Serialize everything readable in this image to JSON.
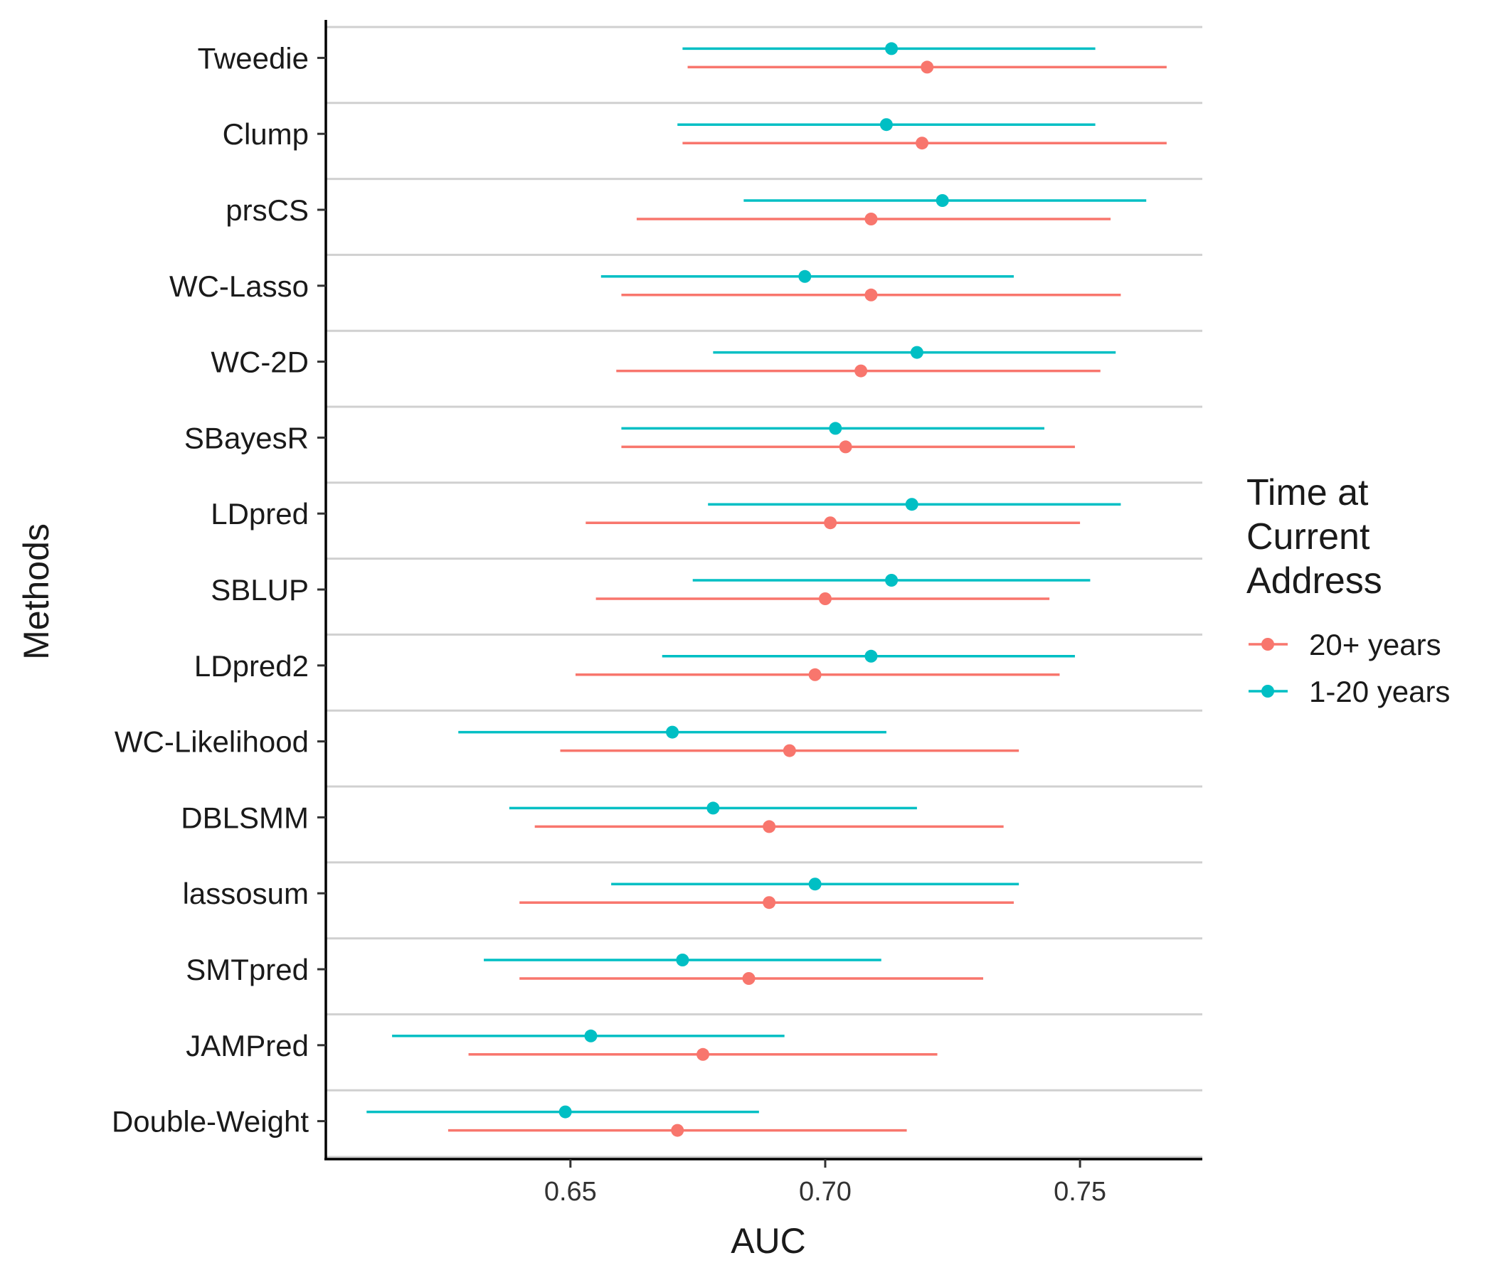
{
  "chart_data": {
    "type": "forest",
    "xlabel": "AUC",
    "ylabel": "Methods",
    "xlim": [
      0.602,
      0.774
    ],
    "xticks": [
      0.65,
      0.7,
      0.75
    ],
    "xtick_labels": [
      "0.65",
      "0.70",
      "0.75"
    ],
    "grid": "horizontal separators between categories",
    "legend": {
      "title_lines": [
        "Time at",
        "Current",
        "Address"
      ],
      "placement": "right"
    },
    "categories": [
      "Tweedie",
      "Clump",
      "prsCS",
      "WC-Lasso",
      "WC-2D",
      "SBayesR",
      "LDpred",
      "SBLUP",
      "LDpred2",
      "WC-Likelihood",
      "DBLSMM",
      "lassosum",
      "SMTpred",
      "JAMPred",
      "Double-Weight"
    ],
    "series": [
      {
        "name": "20+ years",
        "color": "#F8766D",
        "estimate": [
          0.72,
          0.719,
          0.709,
          0.709,
          0.707,
          0.704,
          0.701,
          0.7,
          0.698,
          0.693,
          0.689,
          0.689,
          0.685,
          0.676,
          0.671
        ],
        "lower": [
          0.673,
          0.672,
          0.663,
          0.66,
          0.659,
          0.66,
          0.653,
          0.655,
          0.651,
          0.648,
          0.643,
          0.64,
          0.64,
          0.63,
          0.626
        ],
        "upper": [
          0.767,
          0.767,
          0.756,
          0.758,
          0.754,
          0.749,
          0.75,
          0.744,
          0.746,
          0.738,
          0.735,
          0.737,
          0.731,
          0.722,
          0.716
        ]
      },
      {
        "name": "1-20 years",
        "color": "#00BFC4",
        "estimate": [
          0.713,
          0.712,
          0.723,
          0.696,
          0.718,
          0.702,
          0.717,
          0.713,
          0.709,
          0.67,
          0.678,
          0.698,
          0.672,
          0.654,
          0.649
        ],
        "lower": [
          0.672,
          0.671,
          0.684,
          0.656,
          0.678,
          0.66,
          0.677,
          0.674,
          0.668,
          0.628,
          0.638,
          0.658,
          0.633,
          0.615,
          0.61
        ],
        "upper": [
          0.753,
          0.753,
          0.763,
          0.737,
          0.757,
          0.743,
          0.758,
          0.752,
          0.749,
          0.712,
          0.718,
          0.738,
          0.711,
          0.692,
          0.687
        ]
      }
    ]
  }
}
